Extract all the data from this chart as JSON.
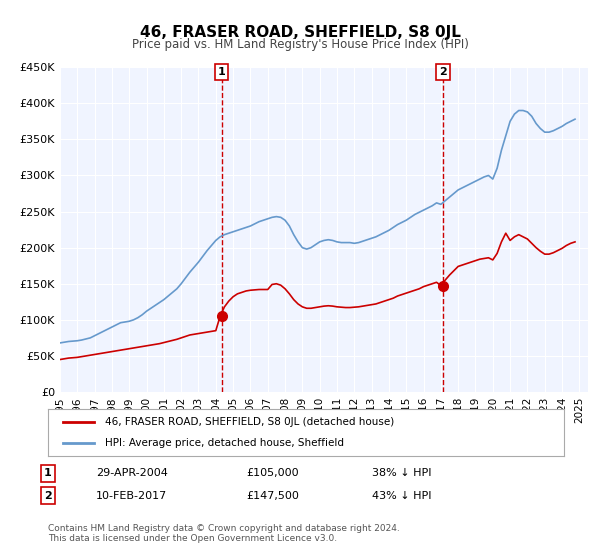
{
  "title": "46, FRASER ROAD, SHEFFIELD, S8 0JL",
  "subtitle": "Price paid vs. HM Land Registry's House Price Index (HPI)",
  "bg_color": "#ffffff",
  "plot_bg_color": "#f0f4ff",
  "grid_color": "#ffffff",
  "ylim": [
    0,
    450000
  ],
  "yticks": [
    0,
    50000,
    100000,
    150000,
    200000,
    250000,
    300000,
    350000,
    400000,
    450000
  ],
  "ytick_labels": [
    "£0",
    "£50K",
    "£100K",
    "£150K",
    "£200K",
    "£250K",
    "£300K",
    "£350K",
    "£400K",
    "£450K"
  ],
  "xlim_start": 1995.0,
  "xlim_end": 2025.5,
  "xticks": [
    1995,
    1996,
    1997,
    1998,
    1999,
    2000,
    2001,
    2002,
    2003,
    2004,
    2005,
    2006,
    2007,
    2008,
    2009,
    2010,
    2011,
    2012,
    2013,
    2014,
    2015,
    2016,
    2017,
    2018,
    2019,
    2020,
    2021,
    2022,
    2023,
    2024,
    2025
  ],
  "sale1_x": 2004.33,
  "sale1_y": 105000,
  "sale1_label": "1",
  "sale1_date": "29-APR-2004",
  "sale1_price": "£105,000",
  "sale1_hpi": "38% ↓ HPI",
  "sale2_x": 2017.12,
  "sale2_y": 147500,
  "sale2_label": "2",
  "sale2_date": "10-FEB-2017",
  "sale2_price": "£147,500",
  "sale2_hpi": "43% ↓ HPI",
  "red_line_color": "#cc0000",
  "blue_line_color": "#6699cc",
  "sale_dot_color": "#cc0000",
  "vline_color": "#cc0000",
  "legend_label_red": "46, FRASER ROAD, SHEFFIELD, S8 0JL (detached house)",
  "legend_label_blue": "HPI: Average price, detached house, Sheffield",
  "footer": "Contains HM Land Registry data © Crown copyright and database right 2024.\nThis data is licensed under the Open Government Licence v3.0.",
  "hpi_x": [
    1995.0,
    1995.25,
    1995.5,
    1995.75,
    1996.0,
    1996.25,
    1996.5,
    1996.75,
    1997.0,
    1997.25,
    1997.5,
    1997.75,
    1998.0,
    1998.25,
    1998.5,
    1998.75,
    1999.0,
    1999.25,
    1999.5,
    1999.75,
    2000.0,
    2000.25,
    2000.5,
    2000.75,
    2001.0,
    2001.25,
    2001.5,
    2001.75,
    2002.0,
    2002.25,
    2002.5,
    2002.75,
    2003.0,
    2003.25,
    2003.5,
    2003.75,
    2004.0,
    2004.25,
    2004.5,
    2004.75,
    2005.0,
    2005.25,
    2005.5,
    2005.75,
    2006.0,
    2006.25,
    2006.5,
    2006.75,
    2007.0,
    2007.25,
    2007.5,
    2007.75,
    2008.0,
    2008.25,
    2008.5,
    2008.75,
    2009.0,
    2009.25,
    2009.5,
    2009.75,
    2010.0,
    2010.25,
    2010.5,
    2010.75,
    2011.0,
    2011.25,
    2011.5,
    2011.75,
    2012.0,
    2012.25,
    2012.5,
    2012.75,
    2013.0,
    2013.25,
    2013.5,
    2013.75,
    2014.0,
    2014.25,
    2014.5,
    2014.75,
    2015.0,
    2015.25,
    2015.5,
    2015.75,
    2016.0,
    2016.25,
    2016.5,
    2016.75,
    2017.0,
    2017.25,
    2017.5,
    2017.75,
    2018.0,
    2018.25,
    2018.5,
    2018.75,
    2019.0,
    2019.25,
    2019.5,
    2019.75,
    2020.0,
    2020.25,
    2020.5,
    2020.75,
    2021.0,
    2021.25,
    2021.5,
    2021.75,
    2022.0,
    2022.25,
    2022.5,
    2022.75,
    2023.0,
    2023.25,
    2023.5,
    2023.75,
    2024.0,
    2024.25,
    2024.5,
    2024.75
  ],
  "hpi_y": [
    68000,
    69000,
    70000,
    70500,
    71000,
    72000,
    73500,
    75000,
    78000,
    81000,
    84000,
    87000,
    90000,
    93000,
    96000,
    97000,
    98000,
    100000,
    103000,
    107000,
    112000,
    116000,
    120000,
    124000,
    128000,
    133000,
    138000,
    143000,
    150000,
    158000,
    166000,
    173000,
    180000,
    188000,
    196000,
    203000,
    210000,
    215000,
    218000,
    220000,
    222000,
    224000,
    226000,
    228000,
    230000,
    233000,
    236000,
    238000,
    240000,
    242000,
    243000,
    242000,
    238000,
    230000,
    218000,
    208000,
    200000,
    198000,
    200000,
    204000,
    208000,
    210000,
    211000,
    210000,
    208000,
    207000,
    207000,
    207000,
    206000,
    207000,
    209000,
    211000,
    213000,
    215000,
    218000,
    221000,
    224000,
    228000,
    232000,
    235000,
    238000,
    242000,
    246000,
    249000,
    252000,
    255000,
    258000,
    262000,
    260000,
    265000,
    270000,
    275000,
    280000,
    283000,
    286000,
    289000,
    292000,
    295000,
    298000,
    300000,
    295000,
    310000,
    335000,
    355000,
    375000,
    385000,
    390000,
    390000,
    388000,
    382000,
    372000,
    365000,
    360000,
    360000,
    362000,
    365000,
    368000,
    372000,
    375000,
    378000
  ],
  "red_x": [
    1995.0,
    1995.25,
    1995.5,
    1995.75,
    1996.0,
    1996.25,
    1996.5,
    1996.75,
    1997.0,
    1997.25,
    1997.5,
    1997.75,
    1998.0,
    1998.25,
    1998.5,
    1998.75,
    1999.0,
    1999.25,
    1999.5,
    1999.75,
    2000.0,
    2000.25,
    2000.5,
    2000.75,
    2001.0,
    2001.25,
    2001.5,
    2001.75,
    2002.0,
    2002.25,
    2002.5,
    2002.75,
    2003.0,
    2003.25,
    2003.5,
    2003.75,
    2004.0,
    2004.25,
    2004.5,
    2004.75,
    2005.0,
    2005.25,
    2005.5,
    2005.75,
    2006.0,
    2006.25,
    2006.5,
    2006.75,
    2007.0,
    2007.25,
    2007.5,
    2007.75,
    2008.0,
    2008.25,
    2008.5,
    2008.75,
    2009.0,
    2009.25,
    2009.5,
    2009.75,
    2010.0,
    2010.25,
    2010.5,
    2010.75,
    2011.0,
    2011.25,
    2011.5,
    2011.75,
    2012.0,
    2012.25,
    2012.5,
    2012.75,
    2013.0,
    2013.25,
    2013.5,
    2013.75,
    2014.0,
    2014.25,
    2014.5,
    2014.75,
    2015.0,
    2015.25,
    2015.5,
    2015.75,
    2016.0,
    2016.25,
    2016.5,
    2016.75,
    2017.0,
    2017.25,
    2017.5,
    2017.75,
    2018.0,
    2018.25,
    2018.5,
    2018.75,
    2019.0,
    2019.25,
    2019.5,
    2019.75,
    2020.0,
    2020.25,
    2020.5,
    2020.75,
    2021.0,
    2021.25,
    2021.5,
    2021.75,
    2022.0,
    2022.25,
    2022.5,
    2022.75,
    2023.0,
    2023.25,
    2023.5,
    2023.75,
    2024.0,
    2024.25,
    2024.5,
    2024.75
  ],
  "red_y": [
    45000,
    46000,
    47000,
    47500,
    48000,
    49000,
    50000,
    51000,
    52000,
    53000,
    54000,
    55000,
    56000,
    57000,
    58000,
    59000,
    60000,
    61000,
    62000,
    63000,
    64000,
    65000,
    66000,
    67000,
    68500,
    70000,
    71500,
    73000,
    75000,
    77000,
    79000,
    80000,
    81000,
    82000,
    83000,
    84000,
    85000,
    105000,
    118000,
    126000,
    132000,
    136000,
    138000,
    140000,
    141000,
    141500,
    142000,
    142000,
    142000,
    149000,
    150000,
    148000,
    143000,
    136000,
    128000,
    122000,
    118000,
    116000,
    116000,
    117000,
    118000,
    119000,
    119500,
    119000,
    118000,
    117500,
    117000,
    117000,
    117500,
    118000,
    119000,
    120000,
    121000,
    122000,
    124000,
    126000,
    128000,
    130000,
    133000,
    135000,
    137000,
    139000,
    141000,
    143000,
    146000,
    148000,
    150000,
    152000,
    147500,
    155000,
    162000,
    168000,
    174000,
    176000,
    178000,
    180000,
    182000,
    184000,
    185000,
    186000,
    183000,
    192000,
    208000,
    220000,
    210000,
    215000,
    218000,
    215000,
    212000,
    206000,
    200000,
    195000,
    191000,
    191000,
    193000,
    196000,
    199000,
    203000,
    206000,
    208000
  ]
}
